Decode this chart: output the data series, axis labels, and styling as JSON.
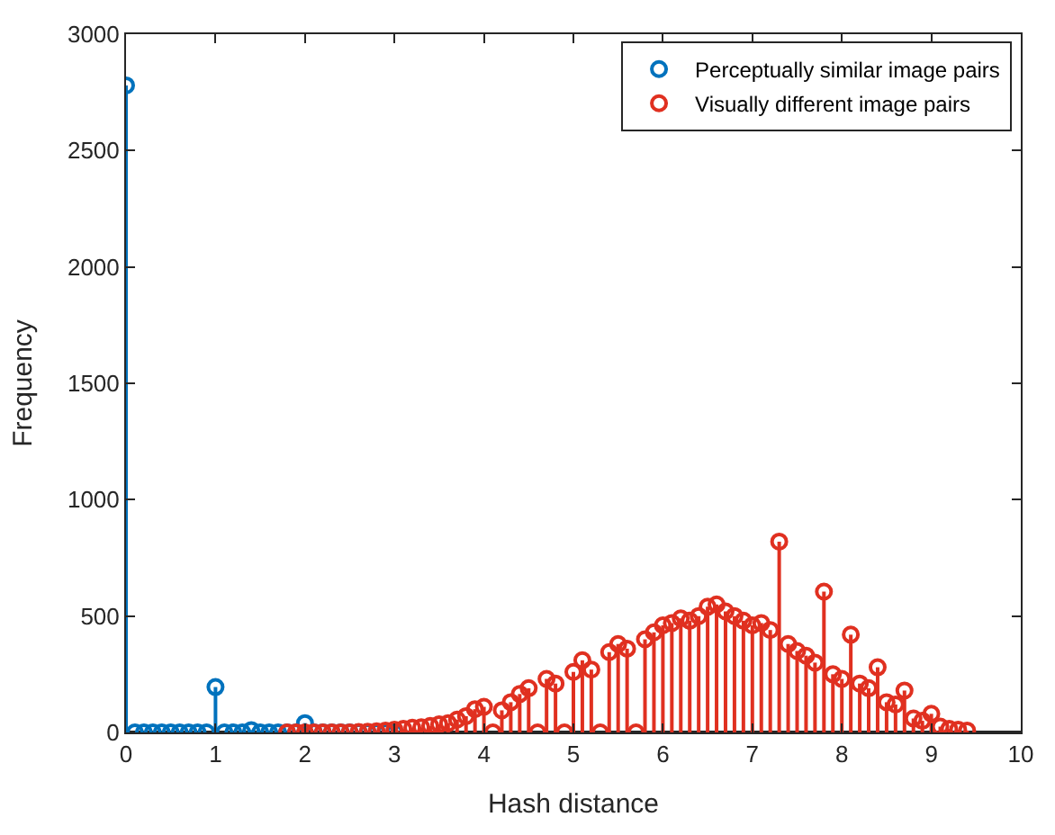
{
  "chart_data": {
    "type": "lollipop",
    "xlabel": "Hash distance",
    "ylabel": "Frequency",
    "xlim": [
      0,
      10
    ],
    "xticks": [
      0,
      1,
      2,
      3,
      4,
      5,
      6,
      7,
      8,
      9,
      10
    ],
    "ylim": [
      0,
      3000
    ],
    "yticks": [
      0,
      500,
      1000,
      1500,
      2000,
      2500,
      3000
    ],
    "legend": "top right",
    "marker": "circle",
    "line_style": "solid",
    "series": [
      {
        "name": "Perceptually similar image pairs",
        "color": "#0072bd",
        "x": [
          0,
          0.1,
          0.2,
          0.3,
          0.4,
          0.5,
          0.6,
          0.7,
          0.8,
          0.9,
          1.0,
          1.1,
          1.2,
          1.3,
          1.4,
          1.5,
          1.6,
          1.7,
          1.8,
          1.9,
          2.0,
          2.1,
          2.2,
          2.3,
          2.4,
          2.5,
          2.6,
          2.7,
          2.8,
          2.9,
          3.0
        ],
        "values": [
          2780,
          0,
          0,
          0,
          0,
          0,
          0,
          0,
          0,
          0,
          195,
          0,
          0,
          0,
          10,
          0,
          0,
          0,
          0,
          0,
          40,
          0,
          0,
          0,
          0,
          0,
          0,
          0,
          0,
          0,
          0
        ]
      },
      {
        "name": "Visually different image pairs",
        "color": "#e03020",
        "x": [
          1.8,
          1.9,
          2.0,
          2.1,
          2.2,
          2.3,
          2.4,
          2.5,
          2.6,
          2.7,
          2.8,
          2.9,
          3.0,
          3.1,
          3.2,
          3.3,
          3.4,
          3.5,
          3.6,
          3.7,
          3.8,
          3.9,
          4.0,
          4.1,
          4.2,
          4.3,
          4.4,
          4.5,
          4.6,
          4.7,
          4.8,
          4.9,
          5.0,
          5.1,
          5.2,
          5.3,
          5.4,
          5.5,
          5.6,
          5.7,
          5.8,
          5.9,
          6.0,
          6.1,
          6.2,
          6.3,
          6.4,
          6.5,
          6.6,
          6.7,
          6.8,
          6.9,
          7.0,
          7.1,
          7.2,
          7.3,
          7.4,
          7.5,
          7.6,
          7.7,
          7.8,
          7.9,
          8.0,
          8.1,
          8.2,
          8.3,
          8.4,
          8.5,
          8.6,
          8.7,
          8.8,
          8.9,
          9.0,
          9.1,
          9.2,
          9.3,
          9.4
        ],
        "values": [
          0,
          0,
          0,
          0,
          0,
          0,
          0,
          0,
          2,
          3,
          5,
          8,
          12,
          15,
          20,
          22,
          28,
          35,
          40,
          55,
          70,
          100,
          110,
          0,
          95,
          130,
          165,
          190,
          0,
          230,
          210,
          0,
          260,
          310,
          270,
          0,
          345,
          380,
          360,
          0,
          400,
          430,
          460,
          470,
          490,
          480,
          500,
          540,
          550,
          520,
          500,
          480,
          460,
          470,
          440,
          820,
          380,
          350,
          330,
          300,
          605,
          250,
          230,
          420,
          210,
          190,
          280,
          130,
          120,
          180,
          60,
          50,
          80,
          25,
          15,
          12,
          8
        ]
      }
    ]
  }
}
